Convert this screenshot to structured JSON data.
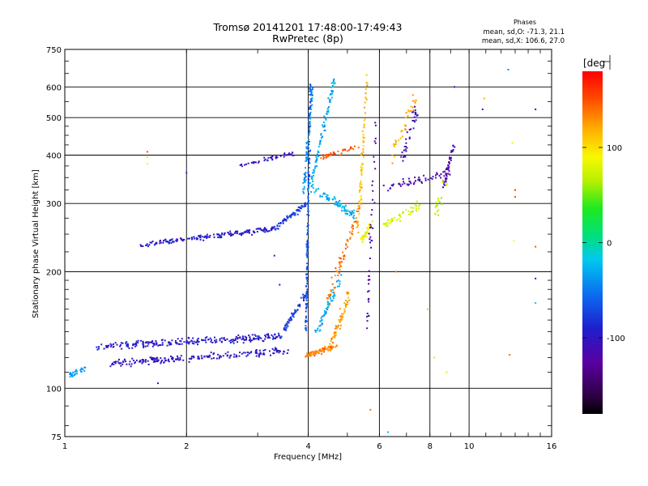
{
  "chart_data": {
    "type": "scatter",
    "title": "Tromsø 20141201 17:48:00-17:49:43",
    "subtitle": "RwPretec (8p)",
    "xlabel": "Frequency [MHz]",
    "ylabel": "Stationary phase Virtual Height [km]",
    "xscale": "log",
    "yscale": "log",
    "xlim": [
      1,
      16
    ],
    "ylim": [
      75,
      750
    ],
    "xticks": [
      1,
      2,
      4,
      6,
      8,
      10,
      16
    ],
    "xtick_labels": [
      "1",
      "2",
      "4",
      "6",
      "8",
      "10",
      "16"
    ],
    "yticks": [
      75,
      100,
      200,
      300,
      400,
      500,
      600,
      750
    ],
    "ytick_labels": [
      "75",
      "100",
      "200",
      "300",
      "400",
      "500",
      "600",
      "750"
    ],
    "grid": true,
    "stats": {
      "heading": "Phases",
      "line_o": "mean, sd,O: -71.3, 21.1",
      "line_x": "mean, sd,X: 106.6, 27.0"
    },
    "colorbar": {
      "label": "[deg",
      "ticks": [
        100,
        0,
        -100
      ],
      "tick_labels": [
        "100",
        "0",
        "-100"
      ],
      "range": [
        -180,
        180
      ],
      "colormap": "rainbow"
    },
    "traces": [
      {
        "kind": "segment",
        "x": [
          1.55,
          3.3
        ],
        "y": [
          235,
          258
        ],
        "phase": -95,
        "n": 170,
        "jx": 0.012,
        "jy": 0.018
      },
      {
        "kind": "segment",
        "x": [
          3.3,
          3.95
        ],
        "y": [
          258,
          300
        ],
        "phase": -80,
        "n": 70,
        "jx": 0.01,
        "jy": 0.02
      },
      {
        "kind": "segment",
        "x": [
          2.7,
          3.7
        ],
        "y": [
          375,
          405
        ],
        "phase": -105,
        "n": 45,
        "jx": 0.01,
        "jy": 0.02
      },
      {
        "kind": "segment",
        "x": [
          1.2,
          3.4
        ],
        "y": [
          128,
          136
        ],
        "phase": -95,
        "n": 240,
        "jx": 0.015,
        "jy": 0.025
      },
      {
        "kind": "segment",
        "x": [
          1.3,
          3.6
        ],
        "y": [
          116,
          125
        ],
        "phase": -100,
        "n": 200,
        "jx": 0.015,
        "jy": 0.025
      },
      {
        "kind": "segment",
        "x": [
          3.4,
          3.95
        ],
        "y": [
          135,
          175
        ],
        "phase": -80,
        "n": 60,
        "jx": 0.008,
        "jy": 0.03
      },
      {
        "kind": "segment",
        "x": [
          3.95,
          4.7
        ],
        "y": [
          122,
          128
        ],
        "phase": 135,
        "n": 70,
        "jx": 0.01,
        "jy": 0.02
      },
      {
        "kind": "segment",
        "x": [
          4.5,
          5.05
        ],
        "y": [
          125,
          175
        ],
        "phase": 125,
        "n": 70,
        "jx": 0.012,
        "jy": 0.04
      },
      {
        "kind": "segment",
        "x": [
          4.2,
          4.8
        ],
        "y": [
          140,
          190
        ],
        "phase": -30,
        "n": 60,
        "jx": 0.012,
        "jy": 0.04
      },
      {
        "kind": "segment",
        "x": [
          3.95,
          4.05
        ],
        "y": [
          140,
          620
        ],
        "phase": -65,
        "n": 160,
        "jx": 0.006,
        "jy": 0.01
      },
      {
        "kind": "segment",
        "x": [
          3.9,
          4.1
        ],
        "y": [
          320,
          600
        ],
        "phase": -40,
        "n": 80,
        "jx": 0.01,
        "jy": 0.03
      },
      {
        "kind": "segment",
        "x": [
          4.05,
          4.65
        ],
        "y": [
          330,
          630
        ],
        "phase": -30,
        "n": 90,
        "jx": 0.01,
        "jy": 0.03
      },
      {
        "kind": "segment",
        "x": [
          4.1,
          5.2
        ],
        "y": [
          330,
          280
        ],
        "phase": -25,
        "n": 80,
        "jx": 0.01,
        "jy": 0.03
      },
      {
        "kind": "segment",
        "x": [
          4.4,
          5.4
        ],
        "y": [
          160,
          300
        ],
        "phase": 140,
        "n": 70,
        "jx": 0.015,
        "jy": 0.05
      },
      {
        "kind": "segment",
        "x": [
          4.3,
          5.3
        ],
        "y": [
          395,
          420
        ],
        "phase": 150,
        "n": 40,
        "jx": 0.01,
        "jy": 0.02
      },
      {
        "kind": "segment",
        "x": [
          5.3,
          5.6
        ],
        "y": [
          250,
          640
        ],
        "phase": 115,
        "n": 80,
        "jx": 0.01,
        "jy": 0.06
      },
      {
        "kind": "segment",
        "x": [
          5.4,
          5.8
        ],
        "y": [
          240,
          270
        ],
        "phase": 85,
        "n": 40,
        "jx": 0.01,
        "jy": 0.02
      },
      {
        "kind": "segment",
        "x": [
          5.6,
          5.9
        ],
        "y": [
          150,
          500
        ],
        "phase": -120,
        "n": 45,
        "jx": 0.01,
        "jy": 0.08
      },
      {
        "kind": "segment",
        "x": [
          6.2,
          7.6
        ],
        "y": [
          265,
          300
        ],
        "phase": 75,
        "n": 45,
        "jx": 0.02,
        "jy": 0.03
      },
      {
        "kind": "segment",
        "x": [
          6.2,
          9.0
        ],
        "y": [
          330,
          360
        ],
        "phase": -115,
        "n": 55,
        "jx": 0.02,
        "jy": 0.03
      },
      {
        "kind": "segment",
        "x": [
          6.4,
          7.4
        ],
        "y": [
          400,
          560
        ],
        "phase": 120,
        "n": 35,
        "jx": 0.02,
        "jy": 0.06
      },
      {
        "kind": "segment",
        "x": [
          6.8,
          7.4
        ],
        "y": [
          380,
          530
        ],
        "phase": -110,
        "n": 35,
        "jx": 0.02,
        "jy": 0.06
      },
      {
        "kind": "segment",
        "x": [
          8.6,
          9.2
        ],
        "y": [
          330,
          430
        ],
        "phase": -120,
        "n": 40,
        "jx": 0.01,
        "jy": 0.05
      },
      {
        "kind": "segment",
        "x": [
          8.2,
          8.8
        ],
        "y": [
          280,
          350
        ],
        "phase": 70,
        "n": 20,
        "jx": 0.02,
        "jy": 0.04
      },
      {
        "kind": "segment",
        "x": [
          1.02,
          1.12
        ],
        "y": [
          108,
          112
        ],
        "phase": -35,
        "n": 30,
        "jx": 0.012,
        "jy": 0.02
      }
    ],
    "sparse_points": [
      {
        "x": 1.6,
        "y": 408,
        "phase": 150
      },
      {
        "x": 1.6,
        "y": 395,
        "phase": 95
      },
      {
        "x": 1.6,
        "y": 380,
        "phase": 85
      },
      {
        "x": 2.0,
        "y": 360,
        "phase": -80
      },
      {
        "x": 3.3,
        "y": 220,
        "phase": -90
      },
      {
        "x": 3.4,
        "y": 185,
        "phase": -100
      },
      {
        "x": 1.7,
        "y": 103,
        "phase": -100
      },
      {
        "x": 5.7,
        "y": 88,
        "phase": 140
      },
      {
        "x": 6.3,
        "y": 77,
        "phase": -20
      },
      {
        "x": 7.9,
        "y": 160,
        "phase": 60
      },
      {
        "x": 8.2,
        "y": 120,
        "phase": 70
      },
      {
        "x": 8.8,
        "y": 110,
        "phase": 80
      },
      {
        "x": 9.2,
        "y": 600,
        "phase": -90
      },
      {
        "x": 10.9,
        "y": 560,
        "phase": 120
      },
      {
        "x": 10.8,
        "y": 525,
        "phase": -110
      },
      {
        "x": 12.5,
        "y": 665,
        "phase": -40
      },
      {
        "x": 12.8,
        "y": 430,
        "phase": 95
      },
      {
        "x": 13.0,
        "y": 325,
        "phase": 160
      },
      {
        "x": 13.0,
        "y": 312,
        "phase": 150
      },
      {
        "x": 14.6,
        "y": 525,
        "phase": -110
      },
      {
        "x": 14.6,
        "y": 232,
        "phase": 150
      },
      {
        "x": 14.6,
        "y": 192,
        "phase": -110
      },
      {
        "x": 14.6,
        "y": 166,
        "phase": -20
      },
      {
        "x": 12.6,
        "y": 122,
        "phase": 140
      },
      {
        "x": 12.9,
        "y": 240,
        "phase": 90
      },
      {
        "x": 6.6,
        "y": 200,
        "phase": 140
      }
    ]
  }
}
